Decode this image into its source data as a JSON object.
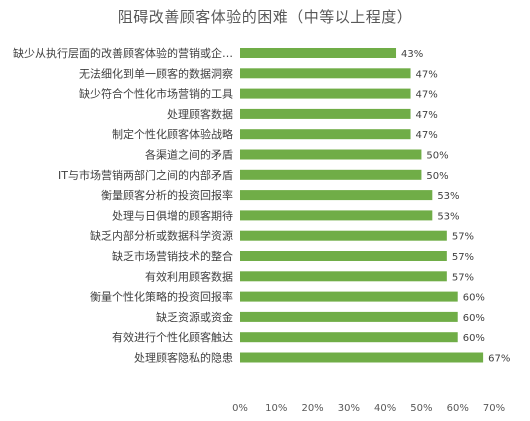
{
  "chart_data": {
    "type": "bar",
    "orientation": "horizontal",
    "title": "阻碍改善顾客体验的困难（中等以上程度）",
    "categories": [
      "缺少从执行层面的改善顾客体验的营销或企…",
      "无法细化到单一顾客的数据洞察",
      "缺少符合个性化市场营销的工具",
      "处理顾客数据",
      "制定个性化顾客体验战略",
      "各渠道之间的矛盾",
      "IT与市场营销两部门之间的内部矛盾",
      "衡量顾客分析的投资回报率",
      "处理与日俱增的顾客期待",
      "缺乏内部分析或数据科学资源",
      "缺乏市场营销技术的整合",
      "有效利用顾客数据",
      "衡量个性化策略的投资回报率",
      "缺乏资源或资金",
      "有效进行个性化顾客触达",
      "处理顾客隐私的隐患"
    ],
    "values": [
      43,
      47,
      47,
      47,
      47,
      50,
      50,
      53,
      53,
      57,
      57,
      57,
      60,
      60,
      60,
      67
    ],
    "data_labels": [
      "43%",
      "47%",
      "47%",
      "47%",
      "47%",
      "50%",
      "50%",
      "53%",
      "53%",
      "57%",
      "57%",
      "57%",
      "60%",
      "60%",
      "60%",
      "67%"
    ],
    "x_ticks": [
      0,
      10,
      20,
      30,
      40,
      50,
      60,
      70
    ],
    "x_tick_labels": [
      "0%",
      "10%",
      "20%",
      "30%",
      "40%",
      "50%",
      "60%",
      "70%"
    ],
    "xlim": [
      0,
      70
    ],
    "bar_color": "#70ad47",
    "grid": false
  }
}
